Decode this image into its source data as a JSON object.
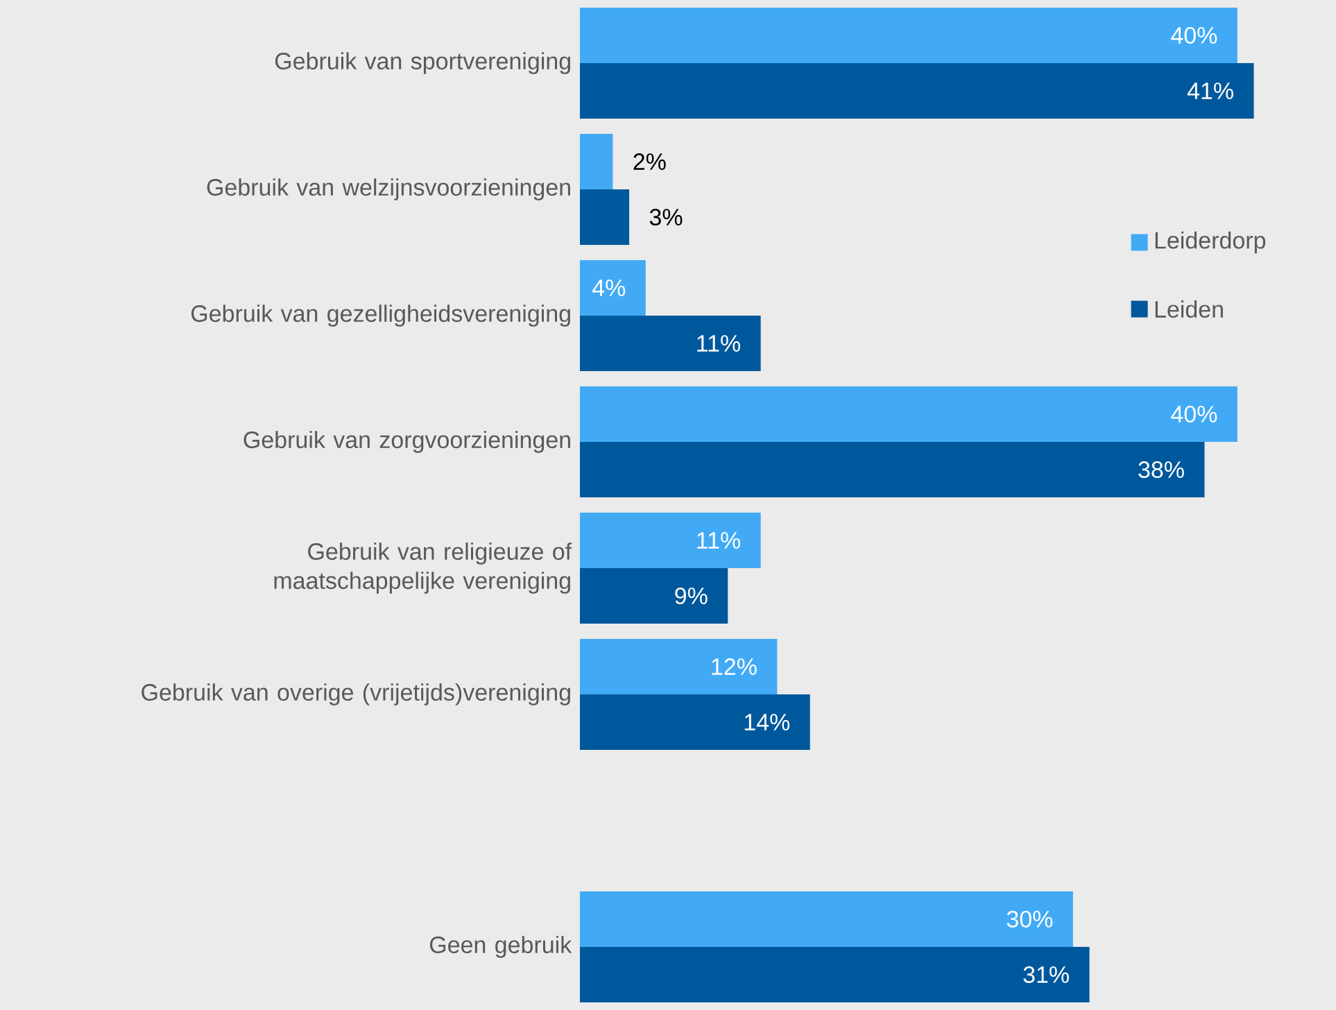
{
  "chart_data": {
    "type": "bar",
    "orientation": "horizontal",
    "legend": "right",
    "categories": [
      "Gebruik van sportvereniging",
      "Gebruik van welzijnsvoorzieningen",
      "Gebruik van gezelligheidsvereniging",
      "Gebruik van zorgvoorzieningen",
      "Gebruik van religieuze of maatschappelijke vereniging",
      "Gebruik van overige (vrijetijds)vereniging",
      null,
      "Geen gebruik"
    ],
    "series": [
      {
        "name": "Leiderdorp",
        "color": "#42aaf5",
        "values": [
          40,
          2,
          4,
          40,
          11,
          12,
          null,
          30
        ],
        "value_labels": [
          "40%",
          "2%",
          "4%",
          "40%",
          "11%",
          "12%",
          null,
          "30%"
        ]
      },
      {
        "name": "Leiden",
        "color": "#00589c",
        "values": [
          41,
          3,
          11,
          38,
          9,
          14,
          null,
          31
        ],
        "value_labels": [
          "41%",
          "3%",
          "11%",
          "38%",
          "9%",
          "14%",
          null,
          "31%"
        ]
      }
    ]
  }
}
